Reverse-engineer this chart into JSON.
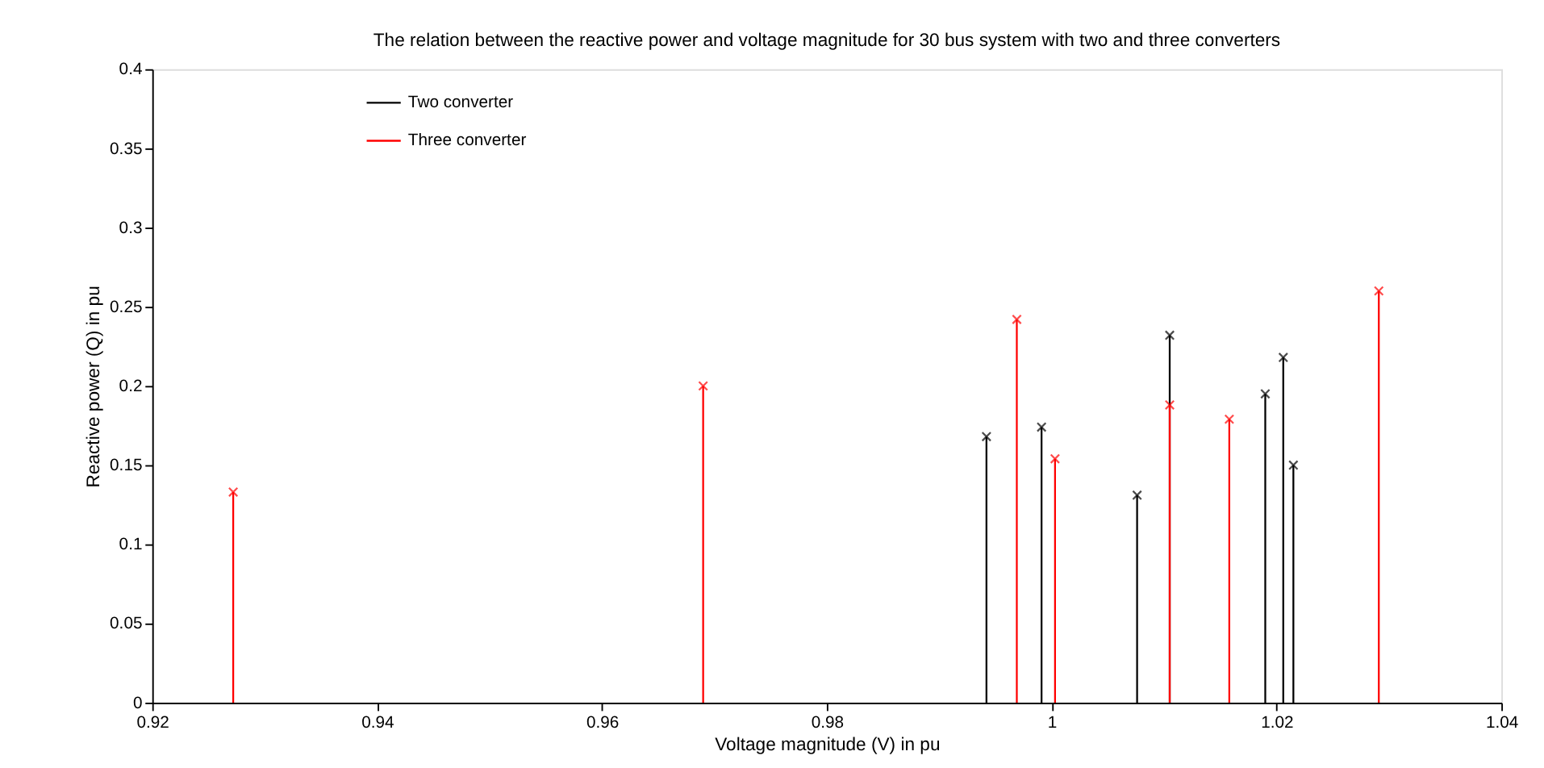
{
  "chart_data": {
    "type": "lollipop",
    "title": "The relation between the reactive power and voltage magnitude for 30 bus system with two and three converters",
    "xlabel": "Voltage magnitude (V) in pu",
    "ylabel": "Reactive power (Q) in pu",
    "series": [
      {
        "name": "Two converter",
        "color": "#000000",
        "x": [
          0.9942,
          0.9991,
          1.0076,
          1.0105,
          1.019,
          1.0206,
          1.0215
        ],
        "values": [
          0.168,
          0.174,
          0.131,
          0.232,
          0.195,
          0.218,
          0.15
        ]
      },
      {
        "name": "Three converter",
        "color": "#ff0000",
        "x": [
          0.9272,
          0.969,
          0.9969,
          1.0003,
          1.0105,
          1.0158,
          1.0291
        ],
        "values": [
          0.133,
          0.2,
          0.242,
          0.154,
          0.188,
          0.179,
          0.26
        ]
      }
    ],
    "xlim": [
      0.92,
      1.04
    ],
    "xticks": [
      0.92,
      0.94,
      0.96,
      0.98,
      1,
      1.02,
      1.04
    ],
    "ylim": [
      0,
      0.4
    ],
    "yticks": [
      0,
      0.05,
      0.1,
      0.15,
      0.2,
      0.25,
      0.3,
      0.35,
      0.4
    ],
    "marker": "cross",
    "legend": "top left",
    "grid": false
  }
}
